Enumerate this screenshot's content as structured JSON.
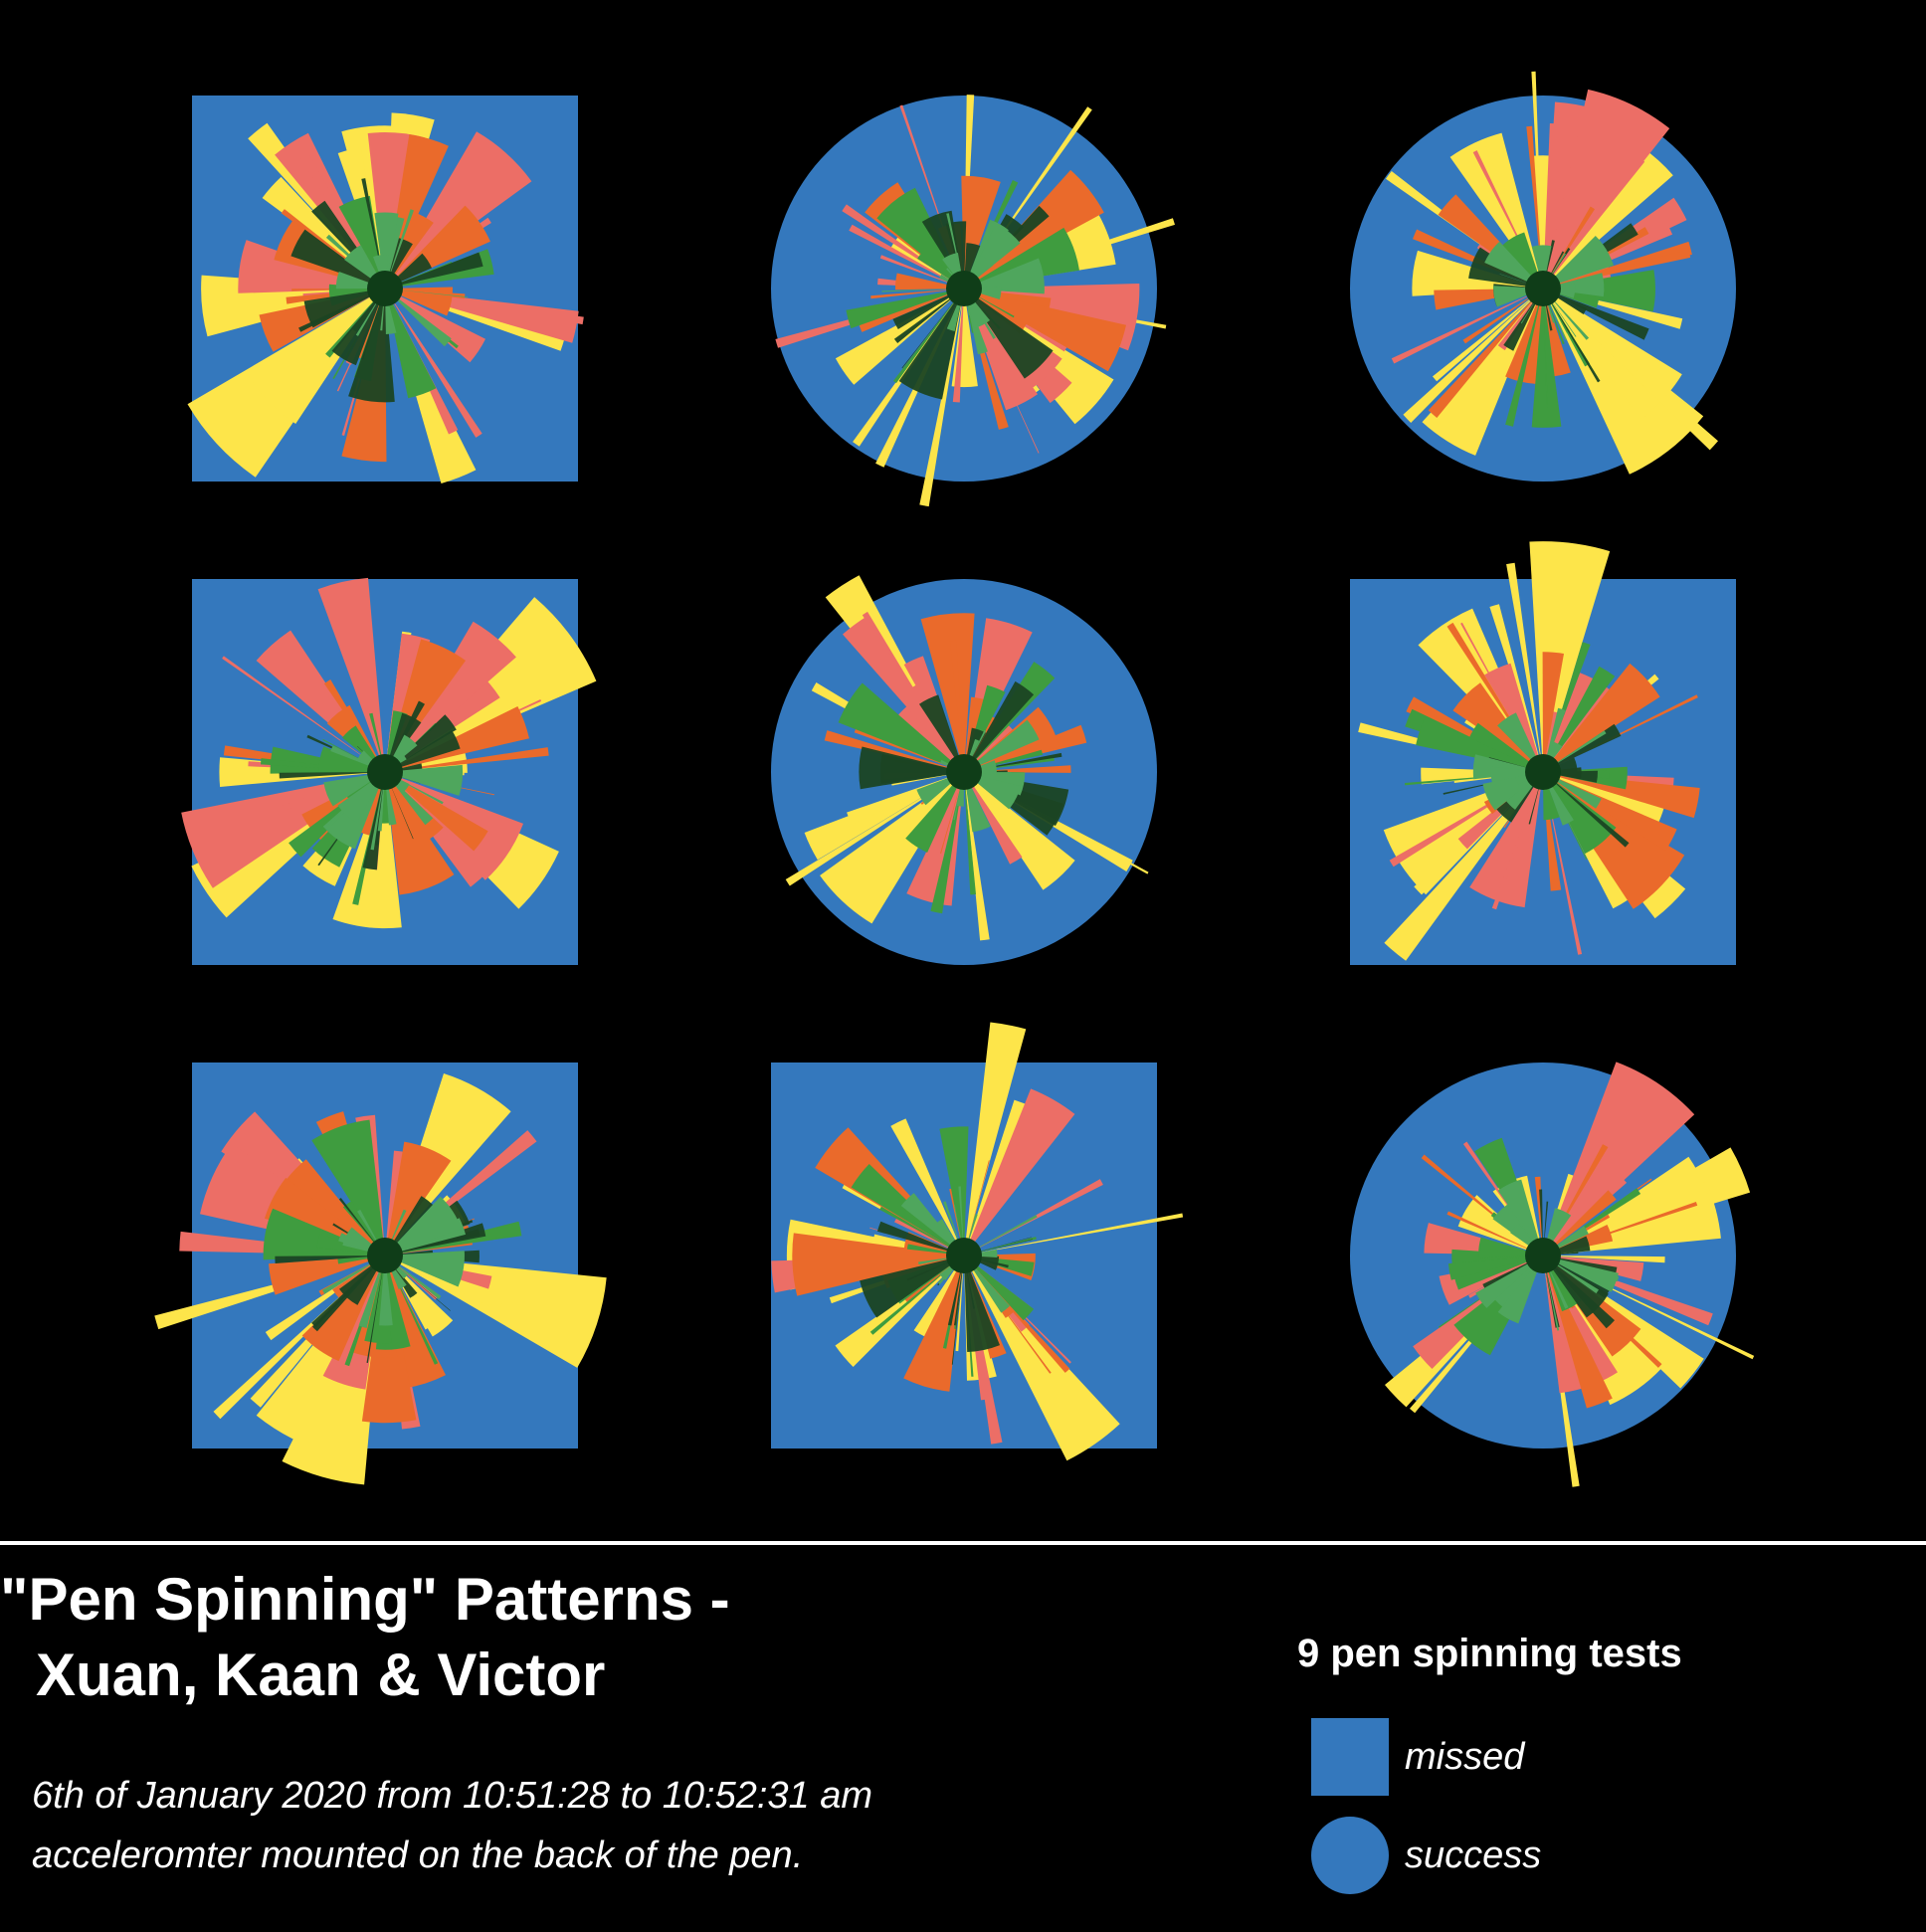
{
  "title": {
    "line1": "\"Pen Spinning\" Patterns -",
    "line2": "Xuan, Kaan & Victor"
  },
  "subtitle": {
    "line1": "6th of January 2020 from 10:51:28 to 10:52:31 am",
    "line2": "acceleromter mounted on the back of the pen."
  },
  "legend": {
    "title": "9 pen spinning tests",
    "items": [
      {
        "shape": "square",
        "label": "missed"
      },
      {
        "shape": "circle",
        "label": "success"
      }
    ]
  },
  "colors": {
    "background": "#000000",
    "base": "#3478bd",
    "hub": "#0f3d18",
    "layers": [
      "#fde54a",
      "#ec6e66",
      "#ea6a2b",
      "#3f9c3f",
      "#1b4523",
      "#4fa65d"
    ]
  },
  "tests": [
    {
      "outcome": "missed",
      "seed": 11
    },
    {
      "outcome": "success",
      "seed": 23
    },
    {
      "outcome": "success",
      "seed": 37
    },
    {
      "outcome": "missed",
      "seed": 41
    },
    {
      "outcome": "success",
      "seed": 53
    },
    {
      "outcome": "missed",
      "seed": 67
    },
    {
      "outcome": "missed",
      "seed": 79
    },
    {
      "outcome": "missed",
      "seed": 83
    },
    {
      "outcome": "success",
      "seed": 97
    }
  ]
}
